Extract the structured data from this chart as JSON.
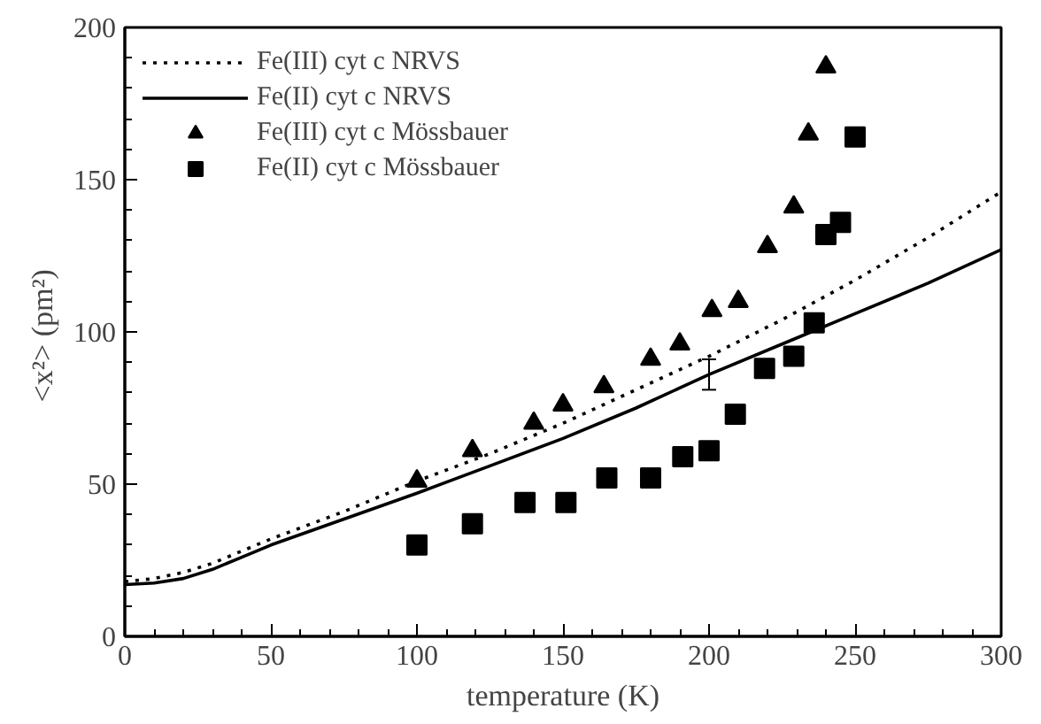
{
  "chart_data": {
    "type": "line",
    "xlabel": "temperature (K)",
    "ylabel": "<x²>  (pm²)",
    "xlim": [
      0,
      300
    ],
    "ylim": [
      0,
      200
    ],
    "xticks": [
      0,
      50,
      100,
      150,
      200,
      250,
      300
    ],
    "yticks": [
      0,
      50,
      100,
      150,
      200
    ],
    "grid": false,
    "legend": "top left",
    "series": [
      {
        "name": "Fe(III) cyt c NRVS",
        "line_style": "dotted",
        "marker": "none",
        "color": "#000000",
        "x": [
          0,
          10,
          20,
          30,
          40,
          50,
          75,
          100,
          125,
          150,
          175,
          200,
          225,
          250,
          275,
          300
        ],
        "values": [
          18,
          19,
          21,
          24,
          28,
          32,
          41,
          51,
          60,
          70,
          81,
          92,
          104,
          117,
          131,
          146
        ]
      },
      {
        "name": "Fe(II) cyt c NRVS",
        "line_style": "solid",
        "marker": "none",
        "color": "#000000",
        "x": [
          0,
          10,
          20,
          30,
          40,
          50,
          75,
          100,
          125,
          150,
          175,
          200,
          225,
          250,
          275,
          300
        ],
        "values": [
          17,
          17.5,
          19,
          22,
          26,
          30,
          38.5,
          47,
          56,
          65,
          75,
          86,
          96,
          106,
          116,
          127
        ],
        "errors": [
          null,
          null,
          null,
          null,
          null,
          null,
          null,
          null,
          null,
          null,
          null,
          5,
          null,
          null,
          null,
          null
        ]
      },
      {
        "name": "Fe(III) cyt c Mössbauer",
        "type": "scatter",
        "marker": "triangle",
        "color": "#000000",
        "x": [
          100,
          119,
          140,
          150,
          164,
          180,
          190,
          201,
          210,
          220,
          229,
          234,
          240
        ],
        "values": [
          51,
          61,
          70,
          76,
          82,
          91,
          96,
          107,
          110,
          128,
          141,
          165,
          187
        ]
      },
      {
        "name": "Fe(II) cyt c Mössbauer",
        "type": "scatter",
        "marker": "square",
        "color": "#000000",
        "x": [
          100,
          119,
          137,
          151,
          165,
          180,
          191,
          200,
          209,
          219,
          229,
          236,
          240,
          245,
          250
        ],
        "values": [
          30,
          37,
          44,
          44,
          52,
          52,
          59,
          61,
          73,
          88,
          92,
          103,
          132,
          136,
          164
        ]
      }
    ]
  }
}
